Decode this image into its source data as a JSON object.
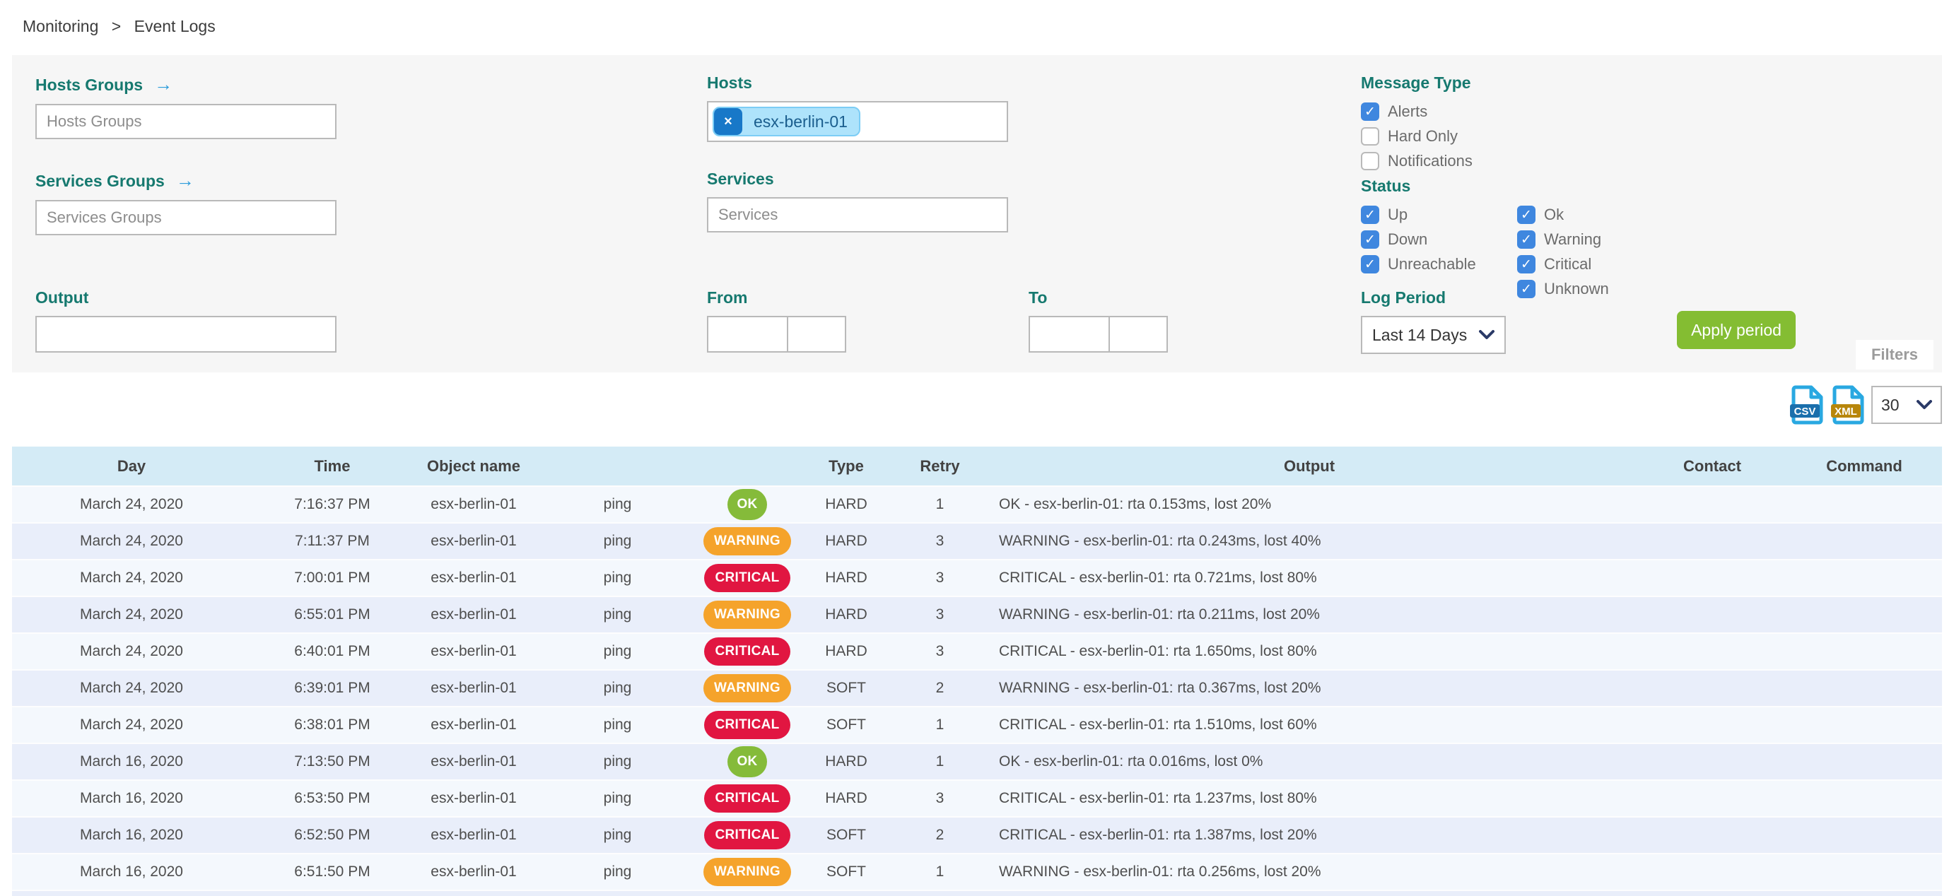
{
  "breadcrumb": {
    "items": [
      "Monitoring",
      "Event Logs"
    ],
    "separator": ">"
  },
  "filters": {
    "tab_label": "Filters",
    "hosts_groups": {
      "label": "Hosts Groups",
      "arrow": "→",
      "placeholder": "Hosts Groups",
      "value": ""
    },
    "services_groups": {
      "label": "Services Groups",
      "arrow": "→",
      "placeholder": "Services Groups",
      "value": ""
    },
    "hosts": {
      "label": "Hosts",
      "chips": [
        "esx-berlin-01"
      ],
      "chip_remove": "×"
    },
    "services": {
      "label": "Services",
      "placeholder": "Services",
      "value": ""
    },
    "output_filter": {
      "label": "Output",
      "value": ""
    },
    "from": {
      "label": "From",
      "date": "",
      "time": ""
    },
    "to": {
      "label": "To",
      "date": "",
      "time": ""
    },
    "message_type": {
      "label": "Message Type",
      "options": [
        {
          "label": "Alerts",
          "checked": true
        },
        {
          "label": "Hard Only",
          "checked": false
        },
        {
          "label": "Notifications",
          "checked": false
        }
      ]
    },
    "status": {
      "label": "Status",
      "col1": [
        {
          "label": "Up",
          "checked": true
        },
        {
          "label": "Down",
          "checked": true
        },
        {
          "label": "Unreachable",
          "checked": true
        }
      ],
      "col2": [
        {
          "label": "Ok",
          "checked": true
        },
        {
          "label": "Warning",
          "checked": true
        },
        {
          "label": "Critical",
          "checked": true
        },
        {
          "label": "Unknown",
          "checked": true
        }
      ]
    },
    "log_period": {
      "label": "Log Period",
      "selected": "Last 14 Days"
    },
    "apply_button": "Apply period"
  },
  "toolbar": {
    "csv_label": "CSV",
    "xml_label": "XML",
    "page_size": "30"
  },
  "table": {
    "headers": {
      "day": "Day",
      "time": "Time",
      "object": "Object name",
      "service": "",
      "status": "",
      "type": "Type",
      "retry": "Retry",
      "output": "Output",
      "contact": "Contact",
      "command": "Command"
    },
    "rows": [
      {
        "day": "March 24, 2020",
        "time": "7:16:37 PM",
        "object": "esx-berlin-01",
        "service": "ping",
        "status": "OK",
        "type": "HARD",
        "retry": "1",
        "output": "OK - esx-berlin-01: rta 0.153ms, lost 20%",
        "contact": "",
        "command": ""
      },
      {
        "day": "March 24, 2020",
        "time": "7:11:37 PM",
        "object": "esx-berlin-01",
        "service": "ping",
        "status": "WARNING",
        "type": "HARD",
        "retry": "3",
        "output": "WARNING - esx-berlin-01: rta 0.243ms, lost 40%",
        "contact": "",
        "command": ""
      },
      {
        "day": "March 24, 2020",
        "time": "7:00:01 PM",
        "object": "esx-berlin-01",
        "service": "ping",
        "status": "CRITICAL",
        "type": "HARD",
        "retry": "3",
        "output": "CRITICAL - esx-berlin-01: rta 0.721ms, lost 80%",
        "contact": "",
        "command": ""
      },
      {
        "day": "March 24, 2020",
        "time": "6:55:01 PM",
        "object": "esx-berlin-01",
        "service": "ping",
        "status": "WARNING",
        "type": "HARD",
        "retry": "3",
        "output": "WARNING - esx-berlin-01: rta 0.211ms, lost 20%",
        "contact": "",
        "command": ""
      },
      {
        "day": "March 24, 2020",
        "time": "6:40:01 PM",
        "object": "esx-berlin-01",
        "service": "ping",
        "status": "CRITICAL",
        "type": "HARD",
        "retry": "3",
        "output": "CRITICAL - esx-berlin-01: rta 1.650ms, lost 80%",
        "contact": "",
        "command": ""
      },
      {
        "day": "March 24, 2020",
        "time": "6:39:01 PM",
        "object": "esx-berlin-01",
        "service": "ping",
        "status": "WARNING",
        "type": "SOFT",
        "retry": "2",
        "output": "WARNING - esx-berlin-01: rta 0.367ms, lost 20%",
        "contact": "",
        "command": ""
      },
      {
        "day": "March 24, 2020",
        "time": "6:38:01 PM",
        "object": "esx-berlin-01",
        "service": "ping",
        "status": "CRITICAL",
        "type": "SOFT",
        "retry": "1",
        "output": "CRITICAL - esx-berlin-01: rta 1.510ms, lost 60%",
        "contact": "",
        "command": ""
      },
      {
        "day": "March 16, 2020",
        "time": "7:13:50 PM",
        "object": "esx-berlin-01",
        "service": "ping",
        "status": "OK",
        "type": "HARD",
        "retry": "1",
        "output": "OK - esx-berlin-01: rta 0.016ms, lost 0%",
        "contact": "",
        "command": ""
      },
      {
        "day": "March 16, 2020",
        "time": "6:53:50 PM",
        "object": "esx-berlin-01",
        "service": "ping",
        "status": "CRITICAL",
        "type": "HARD",
        "retry": "3",
        "output": "CRITICAL - esx-berlin-01: rta 1.237ms, lost 80%",
        "contact": "",
        "command": ""
      },
      {
        "day": "March 16, 2020",
        "time": "6:52:50 PM",
        "object": "esx-berlin-01",
        "service": "ping",
        "status": "CRITICAL",
        "type": "SOFT",
        "retry": "2",
        "output": "CRITICAL - esx-berlin-01: rta 1.387ms, lost 20%",
        "contact": "",
        "command": ""
      },
      {
        "day": "March 16, 2020",
        "time": "6:51:50 PM",
        "object": "esx-berlin-01",
        "service": "ping",
        "status": "WARNING",
        "type": "SOFT",
        "retry": "1",
        "output": "WARNING - esx-berlin-01: rta 0.256ms, lost 20%",
        "contact": "",
        "command": ""
      }
    ]
  },
  "colors": {
    "label_teal": "#16796f",
    "checkbox_blue": "#3f87df",
    "apply_green": "#84bd32",
    "ok": "#85bb3a",
    "warning": "#f5a32b",
    "critical": "#e11641",
    "header_bg": "#d4ebf6",
    "row_odd": "#f4f8fd",
    "row_even": "#e9eefa",
    "chip_bg": "#aee3fb",
    "chip_btn": "#1878c8",
    "icon_blue": "#29a8e1",
    "csv_badge": "#1a6fac",
    "xml_badge": "#b8860b"
  }
}
